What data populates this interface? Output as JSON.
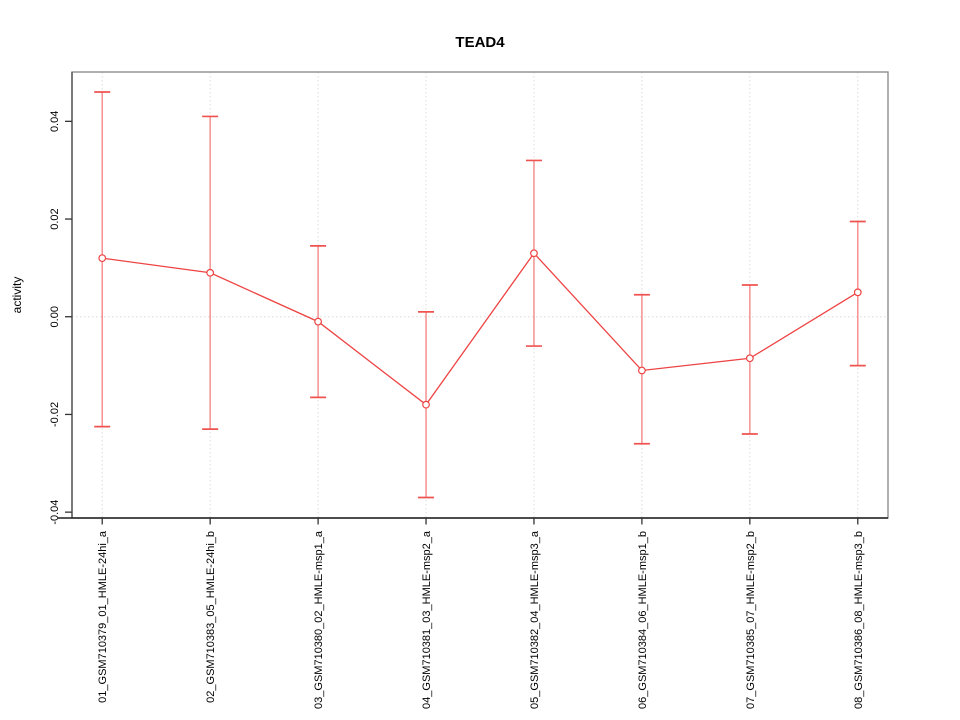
{
  "chart_data": {
    "type": "line",
    "title": "TEAD4",
    "ylabel": "activity",
    "xlabel": "",
    "legend": "none",
    "grid": {
      "vertical_at_categories": true,
      "horizontal_at_zero": true,
      "style": "dotted"
    },
    "ylim": [
      -0.0412,
      0.0501
    ],
    "yticks": [
      0.04,
      0.02,
      0,
      -0.02,
      -0.04
    ],
    "yticklabels": [
      "0.04",
      "0.02",
      "0.00",
      "-0.02",
      "-0.04"
    ],
    "categories": [
      "01_GSM710379_01_HMLE-24hi_a",
      "02_GSM710383_05_HMLE-24hi_b",
      "03_GSM710380_02_HMLE-msp1_a",
      "04_GSM710381_03_HMLE-msp2_a",
      "05_GSM710382_04_HMLE-msp3_a",
      "06_GSM710384_06_HMLE-msp1_b",
      "07_GSM710385_07_HMLE-msp2_b",
      "08_GSM710386_08_HMLE-msp3_b"
    ],
    "series": [
      {
        "name": "activity",
        "marker": "open-circle",
        "values": [
          0.012,
          0.009,
          -0.001,
          -0.018,
          0.013,
          -0.011,
          -0.0085,
          0.005
        ],
        "error_low": [
          -0.0225,
          -0.023,
          -0.0165,
          -0.037,
          -0.006,
          -0.026,
          -0.024,
          -0.01
        ],
        "error_high": [
          0.046,
          0.041,
          0.0145,
          0.001,
          0.032,
          0.0045,
          0.0065,
          0.0195
        ]
      }
    ],
    "colors": {
      "series_line": "#ee4343",
      "error_bar_line": "#f49090",
      "error_bar_cap": "#ef5350",
      "marker_stroke": "#ee4343",
      "marker_fill": "#ffffff",
      "grid": "#dcdcdc",
      "box": "#8f8f8f",
      "axis_bottom": "#1f1f1f",
      "axis_left": "#555555",
      "tick": "#333333",
      "text": "#000000",
      "background": "#ffffff"
    }
  }
}
